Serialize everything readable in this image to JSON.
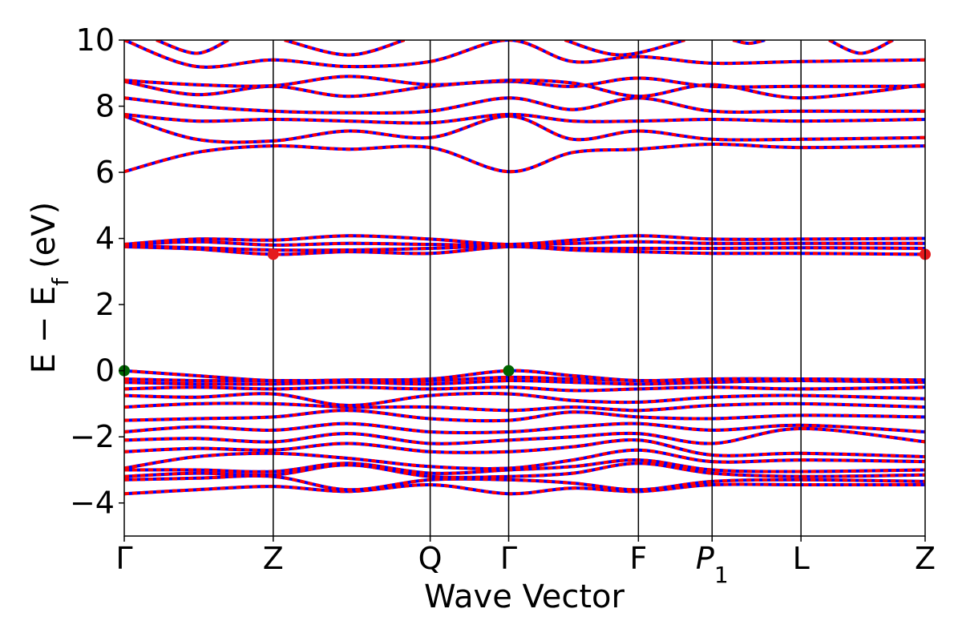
{
  "chart_data": {
    "type": "line",
    "title": "",
    "xlabel": "Wave Vector",
    "ylabel": "E − E_f (eV)",
    "ylabel_main": "E − E",
    "ylabel_sub": "f",
    "ylabel_unit": "(eV)",
    "ylim": [
      -5,
      10
    ],
    "yticks": [
      -4,
      -2,
      0,
      2,
      4,
      6,
      8,
      10
    ],
    "ytick_labels": [
      "−4",
      "−2",
      "0",
      "2",
      "4",
      "6",
      "8",
      "10"
    ],
    "x_range": [
      0,
      1
    ],
    "kpath": [
      {
        "label": "Γ",
        "x": 0.0
      },
      {
        "label": "Z",
        "x": 0.186
      },
      {
        "label": "Q",
        "x": 0.382
      },
      {
        "label": "Γ",
        "x": 0.48
      },
      {
        "label": "F",
        "x": 0.642
      },
      {
        "label": "P",
        "sub": "1",
        "x": 0.734
      },
      {
        "label": "L",
        "x": 0.845
      },
      {
        "label": "Z",
        "x": 1.0
      }
    ],
    "series": [
      {
        "color": "#ff0000",
        "style": "solid",
        "width": 4
      },
      {
        "color": "#0000ff",
        "style": "dotted",
        "width": 4
      }
    ],
    "bands": [
      [
        [
          0,
          -3.72
        ],
        [
          0.09,
          -3.6
        ],
        [
          0.186,
          -3.5
        ],
        [
          0.28,
          -3.65
        ],
        [
          0.382,
          -3.45
        ],
        [
          0.48,
          -3.72
        ],
        [
          0.56,
          -3.55
        ],
        [
          0.642,
          -3.65
        ],
        [
          0.734,
          -3.45
        ],
        [
          0.845,
          -3.45
        ],
        [
          1,
          -3.45
        ]
      ],
      [
        [
          0,
          -3.3
        ],
        [
          0.09,
          -3.25
        ],
        [
          0.186,
          -3.2
        ],
        [
          0.28,
          -3.6
        ],
        [
          0.382,
          -3.3
        ],
        [
          0.48,
          -3.3
        ],
        [
          0.56,
          -3.4
        ],
        [
          0.642,
          -3.6
        ],
        [
          0.734,
          -3.35
        ],
        [
          0.845,
          -3.3
        ],
        [
          1,
          -3.35
        ]
      ],
      [
        [
          0,
          -3.2
        ],
        [
          0.09,
          -3.1
        ],
        [
          0.186,
          -3.15
        ],
        [
          0.28,
          -2.85
        ],
        [
          0.382,
          -3.2
        ],
        [
          0.48,
          -3.2
        ],
        [
          0.56,
          -3.1
        ],
        [
          0.642,
          -2.8
        ],
        [
          0.734,
          -3.1
        ],
        [
          0.845,
          -3.2
        ],
        [
          1,
          -3.15
        ]
      ],
      [
        [
          0,
          -3.0
        ],
        [
          0.09,
          -3.0
        ],
        [
          0.186,
          -3.05
        ],
        [
          0.28,
          -2.8
        ],
        [
          0.382,
          -3.1
        ],
        [
          0.48,
          -3.0
        ],
        [
          0.56,
          -2.9
        ],
        [
          0.642,
          -2.7
        ],
        [
          0.734,
          -3.0
        ],
        [
          0.845,
          -3.05
        ],
        [
          1,
          -3.0
        ]
      ],
      [
        [
          0,
          -2.95
        ],
        [
          0.09,
          -2.6
        ],
        [
          0.186,
          -2.5
        ],
        [
          0.28,
          -2.65
        ],
        [
          0.382,
          -2.9
        ],
        [
          0.48,
          -2.95
        ],
        [
          0.56,
          -2.7
        ],
        [
          0.642,
          -2.4
        ],
        [
          0.734,
          -2.75
        ],
        [
          0.845,
          -2.7
        ],
        [
          1,
          -2.75
        ]
      ],
      [
        [
          0,
          -2.45
        ],
        [
          0.09,
          -2.35
        ],
        [
          0.186,
          -2.4
        ],
        [
          0.28,
          -2.2
        ],
        [
          0.382,
          -2.45
        ],
        [
          0.48,
          -2.45
        ],
        [
          0.56,
          -2.3
        ],
        [
          0.642,
          -2.1
        ],
        [
          0.734,
          -2.55
        ],
        [
          0.845,
          -2.5
        ],
        [
          1,
          -2.6
        ]
      ],
      [
        [
          0,
          -2.1
        ],
        [
          0.09,
          -2.05
        ],
        [
          0.186,
          -2.15
        ],
        [
          0.28,
          -1.9
        ],
        [
          0.382,
          -2.2
        ],
        [
          0.48,
          -2.1
        ],
        [
          0.56,
          -2.0
        ],
        [
          0.642,
          -1.9
        ],
        [
          0.734,
          -2.2
        ],
        [
          0.845,
          -1.75
        ],
        [
          1,
          -2.15
        ]
      ],
      [
        [
          0,
          -1.85
        ],
        [
          0.09,
          -1.7
        ],
        [
          0.186,
          -1.8
        ],
        [
          0.28,
          -1.6
        ],
        [
          0.382,
          -1.85
        ],
        [
          0.48,
          -1.85
        ],
        [
          0.56,
          -1.7
        ],
        [
          0.642,
          -1.6
        ],
        [
          0.734,
          -1.8
        ],
        [
          0.845,
          -1.65
        ],
        [
          1,
          -1.85
        ]
      ],
      [
        [
          0,
          -1.5
        ],
        [
          0.09,
          -1.45
        ],
        [
          0.186,
          -1.4
        ],
        [
          0.28,
          -1.2
        ],
        [
          0.382,
          -1.45
        ],
        [
          0.48,
          -1.5
        ],
        [
          0.56,
          -1.25
        ],
        [
          0.642,
          -1.4
        ],
        [
          0.734,
          -1.45
        ],
        [
          0.845,
          -1.35
        ],
        [
          1,
          -1.4
        ]
      ],
      [
        [
          0,
          -1.1
        ],
        [
          0.09,
          -1.0
        ],
        [
          0.186,
          -1.0
        ],
        [
          0.28,
          -1.1
        ],
        [
          0.382,
          -1.1
        ],
        [
          0.48,
          -1.2
        ],
        [
          0.56,
          -1.1
        ],
        [
          0.642,
          -1.2
        ],
        [
          0.734,
          -1.05
        ],
        [
          0.845,
          -1.0
        ],
        [
          1,
          -1.1
        ]
      ],
      [
        [
          0,
          -0.75
        ],
        [
          0.09,
          -0.8
        ],
        [
          0.186,
          -0.7
        ],
        [
          0.28,
          -1.05
        ],
        [
          0.382,
          -0.75
        ],
        [
          0.48,
          -0.7
        ],
        [
          0.56,
          -0.9
        ],
        [
          0.642,
          -0.95
        ],
        [
          0.734,
          -0.8
        ],
        [
          0.845,
          -0.75
        ],
        [
          1,
          -0.85
        ]
      ],
      [
        [
          0,
          -0.55
        ],
        [
          0.09,
          -0.5
        ],
        [
          0.186,
          -0.55
        ],
        [
          0.28,
          -0.5
        ],
        [
          0.382,
          -0.55
        ],
        [
          0.48,
          -0.5
        ],
        [
          0.56,
          -0.6
        ],
        [
          0.642,
          -0.55
        ],
        [
          0.734,
          -0.5
        ],
        [
          0.845,
          -0.55
        ],
        [
          1,
          -0.5
        ]
      ],
      [
        [
          0,
          -0.35
        ],
        [
          0.09,
          -0.4
        ],
        [
          0.186,
          -0.4
        ],
        [
          0.28,
          -0.35
        ],
        [
          0.382,
          -0.4
        ],
        [
          0.48,
          -0.3
        ],
        [
          0.56,
          -0.35
        ],
        [
          0.642,
          -0.4
        ],
        [
          0.734,
          -0.35
        ],
        [
          0.845,
          -0.3
        ],
        [
          1,
          -0.35
        ]
      ],
      [
        [
          0,
          -0.25
        ],
        [
          0.09,
          -0.3
        ],
        [
          0.186,
          -0.3
        ],
        [
          0.28,
          -0.3
        ],
        [
          0.382,
          -0.3
        ],
        [
          0.48,
          -0.2
        ],
        [
          0.56,
          -0.25
        ],
        [
          0.642,
          -0.3
        ],
        [
          0.734,
          -0.3
        ],
        [
          0.845,
          -0.25
        ],
        [
          1,
          -0.3
        ]
      ],
      [
        [
          0,
          0.0
        ],
        [
          0.09,
          -0.15
        ],
        [
          0.186,
          -0.3
        ],
        [
          0.28,
          -0.28
        ],
        [
          0.382,
          -0.25
        ],
        [
          0.48,
          0.0
        ],
        [
          0.56,
          -0.15
        ],
        [
          0.642,
          -0.3
        ],
        [
          0.734,
          -0.25
        ],
        [
          0.845,
          -0.25
        ],
        [
          1,
          -0.28
        ]
      ],
      [
        [
          0,
          3.75
        ],
        [
          0.09,
          3.68
        ],
        [
          0.186,
          3.52
        ],
        [
          0.28,
          3.6
        ],
        [
          0.382,
          3.55
        ],
        [
          0.48,
          3.75
        ],
        [
          0.56,
          3.65
        ],
        [
          0.642,
          3.6
        ],
        [
          0.734,
          3.55
        ],
        [
          0.845,
          3.55
        ],
        [
          1,
          3.52
        ]
      ],
      [
        [
          0,
          3.78
        ],
        [
          0.09,
          3.72
        ],
        [
          0.186,
          3.65
        ],
        [
          0.28,
          3.65
        ],
        [
          0.382,
          3.7
        ],
        [
          0.48,
          3.78
        ],
        [
          0.56,
          3.7
        ],
        [
          0.642,
          3.7
        ],
        [
          0.734,
          3.7
        ],
        [
          0.845,
          3.72
        ],
        [
          1,
          3.7
        ]
      ],
      [
        [
          0,
          3.8
        ],
        [
          0.09,
          3.9
        ],
        [
          0.186,
          3.8
        ],
        [
          0.28,
          3.85
        ],
        [
          0.382,
          3.82
        ],
        [
          0.48,
          3.8
        ],
        [
          0.56,
          3.85
        ],
        [
          0.642,
          3.9
        ],
        [
          0.734,
          3.85
        ],
        [
          0.845,
          3.85
        ],
        [
          1,
          3.85
        ]
      ],
      [
        [
          0,
          3.82
        ],
        [
          0.09,
          3.98
        ],
        [
          0.186,
          3.95
        ],
        [
          0.28,
          4.08
        ],
        [
          0.382,
          3.98
        ],
        [
          0.48,
          3.82
        ],
        [
          0.56,
          3.95
        ],
        [
          0.642,
          4.08
        ],
        [
          0.734,
          3.98
        ],
        [
          0.845,
          3.98
        ],
        [
          1,
          4.0
        ]
      ],
      [
        [
          0,
          6.02
        ],
        [
          0.09,
          6.6
        ],
        [
          0.186,
          6.8
        ],
        [
          0.28,
          6.7
        ],
        [
          0.382,
          6.75
        ],
        [
          0.48,
          6.02
        ],
        [
          0.56,
          6.6
        ],
        [
          0.642,
          6.7
        ],
        [
          0.734,
          6.85
        ],
        [
          0.845,
          6.75
        ],
        [
          1,
          6.8
        ]
      ],
      [
        [
          0,
          7.7
        ],
        [
          0.09,
          7.0
        ],
        [
          0.186,
          6.95
        ],
        [
          0.28,
          7.25
        ],
        [
          0.382,
          7.05
        ],
        [
          0.48,
          7.7
        ],
        [
          0.56,
          7.0
        ],
        [
          0.642,
          7.25
        ],
        [
          0.734,
          7.0
        ],
        [
          0.845,
          7.0
        ],
        [
          1,
          7.05
        ]
      ],
      [
        [
          0,
          7.75
        ],
        [
          0.09,
          7.55
        ],
        [
          0.186,
          7.6
        ],
        [
          0.28,
          7.55
        ],
        [
          0.382,
          7.5
        ],
        [
          0.48,
          7.75
        ],
        [
          0.56,
          7.55
        ],
        [
          0.642,
          7.55
        ],
        [
          0.734,
          7.6
        ],
        [
          0.845,
          7.55
        ],
        [
          1,
          7.6
        ]
      ],
      [
        [
          0,
          8.25
        ],
        [
          0.09,
          8.0
        ],
        [
          0.186,
          7.85
        ],
        [
          0.28,
          7.8
        ],
        [
          0.382,
          7.85
        ],
        [
          0.48,
          8.25
        ],
        [
          0.56,
          7.9
        ],
        [
          0.642,
          8.25
        ],
        [
          0.734,
          7.85
        ],
        [
          0.845,
          7.85
        ],
        [
          1,
          7.85
        ]
      ],
      [
        [
          0,
          8.75
        ],
        [
          0.09,
          8.35
        ],
        [
          0.186,
          8.6
        ],
        [
          0.28,
          8.3
        ],
        [
          0.382,
          8.6
        ],
        [
          0.48,
          8.75
        ],
        [
          0.56,
          8.6
        ],
        [
          0.642,
          8.85
        ],
        [
          0.734,
          8.6
        ],
        [
          0.845,
          8.6
        ],
        [
          1,
          8.6
        ]
      ],
      [
        [
          0,
          8.78
        ],
        [
          0.09,
          8.65
        ],
        [
          0.186,
          8.62
        ],
        [
          0.28,
          8.9
        ],
        [
          0.382,
          8.65
        ],
        [
          0.48,
          8.78
        ],
        [
          0.56,
          8.7
        ],
        [
          0.642,
          8.3
        ],
        [
          0.734,
          8.65
        ],
        [
          0.845,
          8.25
        ],
        [
          1,
          8.65
        ]
      ],
      [
        [
          0,
          10.0
        ],
        [
          0.09,
          9.2
        ],
        [
          0.186,
          9.4
        ],
        [
          0.28,
          9.2
        ],
        [
          0.382,
          9.35
        ],
        [
          0.48,
          10.0
        ],
        [
          0.56,
          9.35
        ],
        [
          0.642,
          9.5
        ],
        [
          0.734,
          9.3
        ],
        [
          0.845,
          9.35
        ],
        [
          1,
          9.4
        ]
      ],
      [
        [
          0.04,
          10.0
        ],
        [
          0.09,
          9.6
        ],
        [
          0.13,
          10.0
        ]
      ],
      [
        [
          0.2,
          10.0
        ],
        [
          0.28,
          9.55
        ],
        [
          0.35,
          10.0
        ]
      ],
      [
        [
          0.55,
          10.0
        ],
        [
          0.62,
          9.55
        ],
        [
          0.7,
          10.0
        ]
      ],
      [
        [
          0.76,
          10.0
        ],
        [
          0.78,
          9.9
        ],
        [
          0.8,
          10.0
        ]
      ],
      [
        [
          0.88,
          10.0
        ],
        [
          0.92,
          9.6
        ],
        [
          0.96,
          10.0
        ]
      ]
    ],
    "markers": [
      {
        "x": 0.0,
        "y": 0.0,
        "color": "#006400"
      },
      {
        "x": 0.48,
        "y": 0.0,
        "color": "#006400"
      },
      {
        "x": 0.186,
        "y": 3.52,
        "color": "#e41a1c"
      },
      {
        "x": 1.0,
        "y": 3.52,
        "color": "#e41a1c"
      }
    ]
  }
}
